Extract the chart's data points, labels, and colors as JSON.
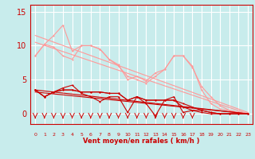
{
  "bg_color": "#c8ecec",
  "grid_color": "#b0d8d8",
  "text_color": "#cc0000",
  "line_color_dark": "#cc0000",
  "line_color_light": "#ff9999",
  "xlabel": "Vent moyen/en rafales ( km/h )",
  "ylabel_ticks": [
    0,
    5,
    10,
    15
  ],
  "xmax": 23,
  "ymin": -1.5,
  "ymax": 16,
  "arrow_subset": [
    0,
    1,
    2,
    3,
    4,
    5,
    6,
    7,
    8,
    9,
    10,
    11,
    12,
    13,
    14,
    15,
    16,
    17
  ],
  "lines_light": [
    {
      "x": [
        0,
        1,
        2,
        3,
        4,
        5,
        6,
        7,
        8,
        9,
        10,
        11,
        12,
        13,
        14,
        15,
        16,
        17,
        18,
        19,
        20,
        21,
        22,
        23
      ],
      "y": [
        8.5,
        10.2,
        11.5,
        13.0,
        9.2,
        10.0,
        10.0,
        9.5,
        8.0,
        7.0,
        5.5,
        5.0,
        4.5,
        5.5,
        6.5,
        8.5,
        8.5,
        7.0,
        3.5,
        1.5,
        0.7,
        0.5,
        0.2,
        0.0
      ]
    },
    {
      "x": [
        0,
        1,
        2,
        3,
        4,
        5,
        6,
        7,
        8,
        9,
        10,
        11,
        12,
        13,
        14,
        15,
        16,
        17,
        18,
        19,
        20,
        21,
        22,
        23
      ],
      "y": [
        8.5,
        10.2,
        9.8,
        8.5,
        8.0,
        10.0,
        10.0,
        9.5,
        8.0,
        7.2,
        5.0,
        5.5,
        4.8,
        6.0,
        6.5,
        8.5,
        8.5,
        6.8,
        4.0,
        2.5,
        1.2,
        0.5,
        0.2,
        0.0
      ]
    },
    {
      "x": [
        0,
        23
      ],
      "y": [
        11.5,
        0.2
      ]
    },
    {
      "x": [
        0,
        23
      ],
      "y": [
        10.5,
        0.0
      ]
    }
  ],
  "lines_dark": [
    {
      "x": [
        0,
        1,
        2,
        3,
        4,
        5,
        6,
        7,
        8,
        9,
        10,
        11,
        12,
        13,
        14,
        15,
        16,
        17,
        18,
        19,
        20,
        21,
        22,
        23
      ],
      "y": [
        3.5,
        2.5,
        3.2,
        3.8,
        4.2,
        3.0,
        2.5,
        1.8,
        2.5,
        2.5,
        0.2,
        2.5,
        1.5,
        -0.3,
        2.0,
        2.5,
        0.2,
        0.5,
        0.5,
        0.2,
        0.0,
        0.0,
        0.0,
        0.0
      ]
    },
    {
      "x": [
        0,
        1,
        2,
        3,
        4,
        5,
        6,
        7,
        8,
        9,
        10,
        11,
        12,
        13,
        14,
        15,
        16,
        17,
        18,
        19,
        20,
        21,
        22,
        23
      ],
      "y": [
        3.5,
        2.5,
        3.2,
        3.5,
        3.5,
        3.2,
        3.2,
        3.2,
        3.0,
        3.0,
        2.0,
        2.5,
        2.0,
        2.0,
        2.0,
        2.0,
        1.5,
        1.0,
        0.5,
        0.2,
        0.0,
        0.0,
        0.0,
        0.0
      ]
    },
    {
      "x": [
        0,
        1,
        2,
        3,
        4,
        5,
        6,
        7,
        8,
        9,
        10,
        11,
        12,
        13,
        14,
        15,
        16,
        17,
        18,
        19,
        20,
        21,
        22,
        23
      ],
      "y": [
        3.5,
        2.5,
        3.2,
        3.5,
        3.5,
        3.2,
        3.2,
        3.2,
        3.0,
        3.0,
        2.0,
        2.5,
        2.0,
        2.0,
        2.0,
        2.0,
        1.0,
        0.5,
        0.2,
        0.0,
        0.0,
        0.0,
        0.0,
        0.0
      ]
    },
    {
      "x": [
        0,
        23
      ],
      "y": [
        3.5,
        0.0
      ]
    },
    {
      "x": [
        0,
        23
      ],
      "y": [
        3.2,
        0.0
      ]
    }
  ]
}
